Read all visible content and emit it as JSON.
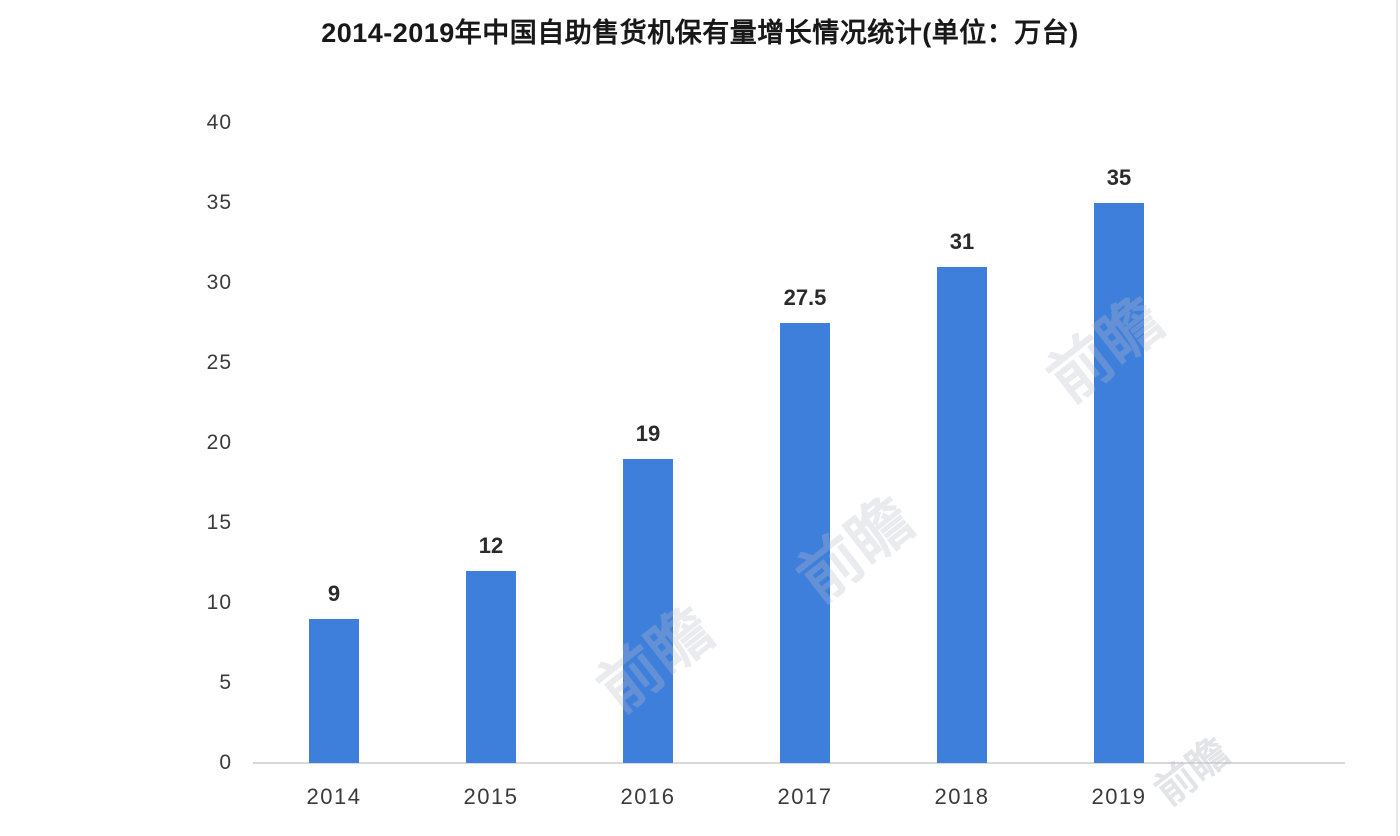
{
  "title": "2014-2019年中国自助售货机保有量增长情况统计(单位：万台)",
  "chart_data": {
    "type": "bar",
    "title": "2014-2019年中国自助售货机保有量增长情况统计(单位：万台)",
    "categories": [
      "2014",
      "2015",
      "2016",
      "2017",
      "2018",
      "2019"
    ],
    "values": [
      9,
      12,
      19,
      27.5,
      31,
      35
    ],
    "data_labels": [
      "9",
      "12",
      "19",
      "27.5",
      "31",
      "35"
    ],
    "xlabel": "",
    "ylabel": "",
    "ylim": [
      0,
      40
    ],
    "yticks": [
      0,
      5,
      10,
      15,
      20,
      25,
      30,
      35,
      40
    ],
    "bar_color": "#3f7fdc",
    "grid": false,
    "legend": false
  },
  "watermark": {
    "text": "前瞻"
  }
}
